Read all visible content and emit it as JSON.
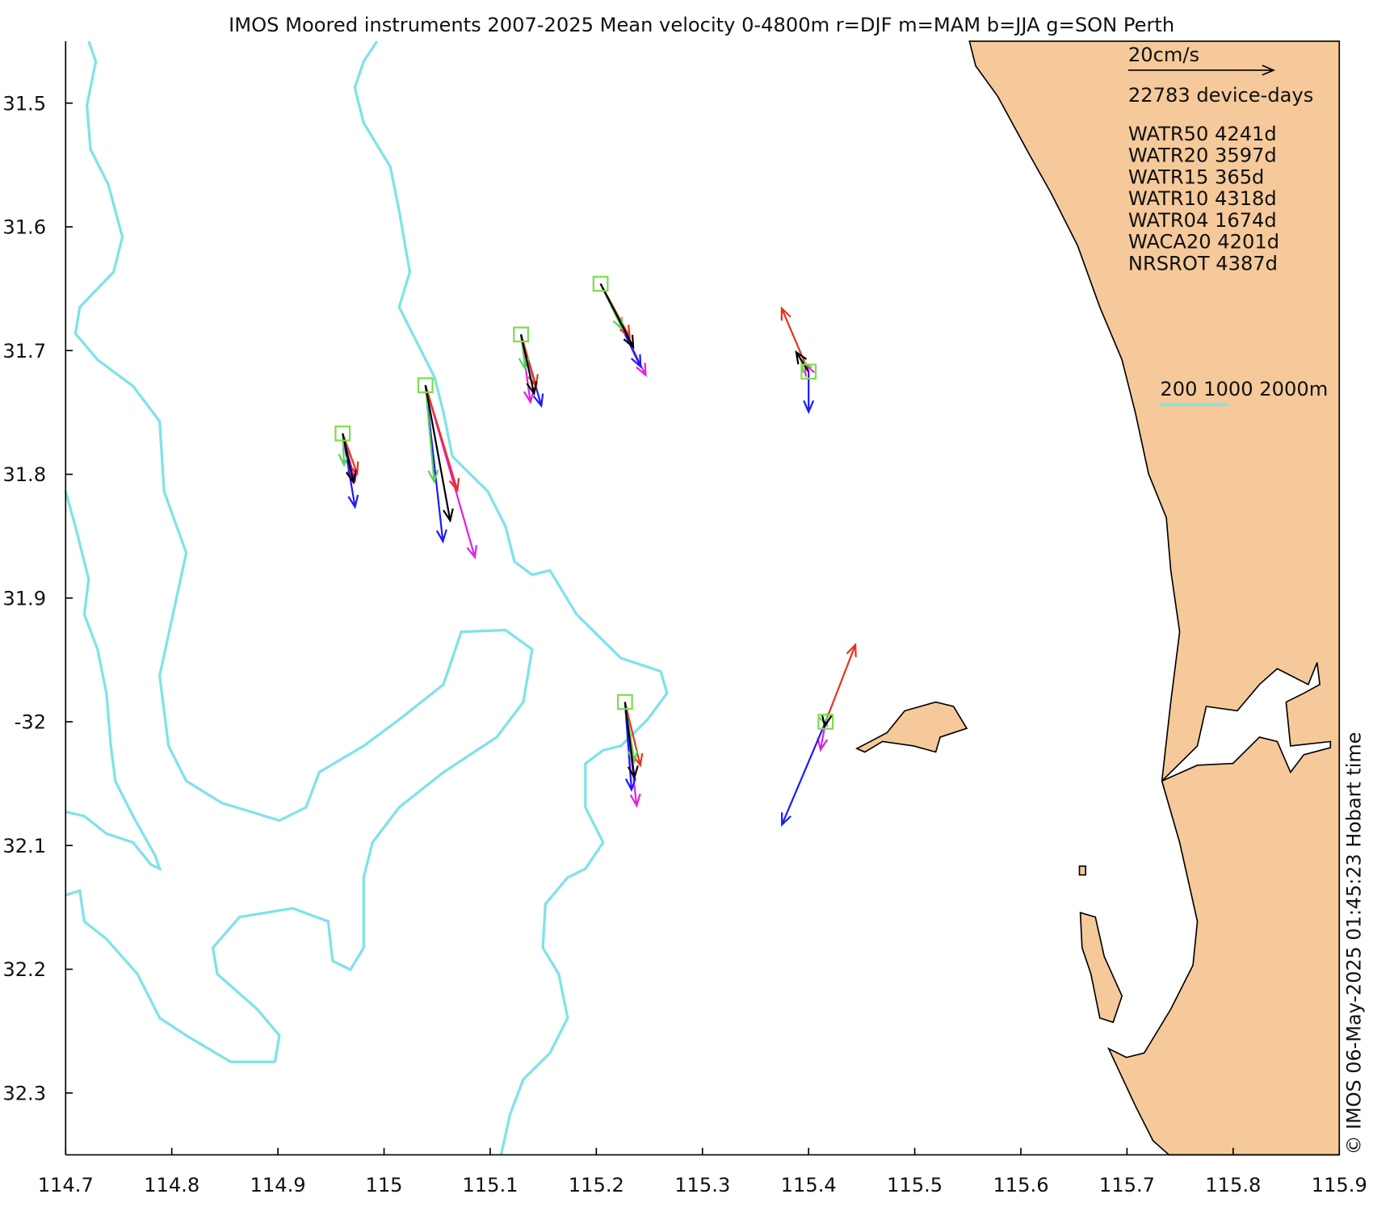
{
  "title": "IMOS Moored instruments 2007-2025 Mean velocity 0-4800m r=DJF m=MAM b=JJA g=SON Perth",
  "axes": {
    "xlim": [
      114.7,
      115.9
    ],
    "xticks": [
      114.7,
      114.8,
      114.9,
      115,
      115.1,
      115.2,
      115.3,
      115.4,
      115.5,
      115.6,
      115.7,
      115.8,
      115.9
    ],
    "ylim": [
      -31.45,
      -32.35
    ],
    "yticks": [
      {
        "value": -31.5,
        "label": "31.5"
      },
      {
        "value": -31.6,
        "label": "31.6"
      },
      {
        "value": -31.7,
        "label": "31.7"
      },
      {
        "value": -31.8,
        "label": "31.8"
      },
      {
        "value": -31.9,
        "label": "31.9"
      },
      -32,
      {
        "value": -32.1,
        "label": "32.1"
      },
      {
        "value": -32.2,
        "label": "32.2"
      },
      {
        "value": -32.3,
        "label": "32.3"
      }
    ]
  },
  "legend": {
    "scale": {
      "value": 20,
      "label": "20cm/s"
    },
    "device_days": "22783 device-days",
    "stations": [
      "WATR50 4241d",
      "WATR20 3597d",
      "WATR15 365d",
      "WATR10 4318d",
      "WATR04 1674d",
      "WACA20 4201d",
      "NRSROT 4387d"
    ],
    "isobaths": "200 1000 2000m"
  },
  "marker_color": "#7ddc4a",
  "moorings": [
    {
      "lon": 114.961,
      "lat": -31.767,
      "arrows": [
        {
          "color": "#e020e0",
          "u": 1.7,
          "v": -6.6
        },
        {
          "color": "#1a1aff",
          "u": 1.7,
          "v": -10.2
        },
        {
          "color": "#e8321e",
          "u": 2.0,
          "v": -5.6
        },
        {
          "color": "#5ad05a",
          "u": 0.2,
          "v": -4.4
        },
        {
          "color": "#000000",
          "u": 1.5,
          "v": -6.8
        }
      ]
    },
    {
      "lon": 115.039,
      "lat": -31.728,
      "arrows": [
        {
          "color": "#e020e0",
          "u": 6.8,
          "v": -23.9
        },
        {
          "color": "#1a1aff",
          "u": 2.4,
          "v": -21.7
        },
        {
          "color": "#e8321e",
          "u": 4.4,
          "v": -14.6
        },
        {
          "color": "#5ad05a",
          "u": 1.2,
          "v": -13.4
        },
        {
          "color": "#000000",
          "u": 3.4,
          "v": -18.8
        }
      ]
    },
    {
      "lon": 115.129,
      "lat": -31.687,
      "arrows": [
        {
          "color": "#e020e0",
          "u": 1.3,
          "v": -9.4
        },
        {
          "color": "#1a1aff",
          "u": 2.8,
          "v": -9.9
        },
        {
          "color": "#e8321e",
          "u": 2.1,
          "v": -7.2
        },
        {
          "color": "#5ad05a",
          "u": 0.6,
          "v": -4.8
        },
        {
          "color": "#000000",
          "u": 1.8,
          "v": -8.2
        }
      ]
    },
    {
      "lon": 115.204,
      "lat": -31.646,
      "arrows": [
        {
          "color": "#e020e0",
          "u": 6.2,
          "v": -12.7
        },
        {
          "color": "#1a1aff",
          "u": 5.5,
          "v": -11.5
        },
        {
          "color": "#e8321e",
          "u": 4.0,
          "v": -7.4
        },
        {
          "color": "#5ad05a",
          "u": 3.0,
          "v": -6.3
        },
        {
          "color": "#000000",
          "u": 4.5,
          "v": -8.8
        }
      ]
    },
    {
      "lon": 115.4,
      "lat": -31.717,
      "arrows": [
        {
          "color": "#e020e0",
          "u": -0.5,
          "v": 1.0
        },
        {
          "color": "#1a1aff",
          "u": 0,
          "v": -5.6
        },
        {
          "color": "#e8321e",
          "u": -3.7,
          "v": 8.8
        },
        {
          "color": "#5ad05a",
          "u": -1.0,
          "v": 1.5
        },
        {
          "color": "#000000",
          "u": -1.7,
          "v": 2.7
        }
      ]
    },
    {
      "lon": 115.227,
      "lat": -31.984,
      "arrows": [
        {
          "color": "#e020e0",
          "u": 1.6,
          "v": -14.4
        },
        {
          "color": "#1a1aff",
          "u": 0.9,
          "v": -12.2
        },
        {
          "color": "#e8321e",
          "u": 2.1,
          "v": -8.8
        },
        {
          "color": "#5ad05a",
          "u": 1.3,
          "v": -8.3
        },
        {
          "color": "#000000",
          "u": 1.3,
          "v": -10.5
        }
      ]
    },
    {
      "lon": 115.416,
      "lat": -32.0,
      "arrows": [
        {
          "color": "#e020e0",
          "u": -0.7,
          "v": -3.9
        },
        {
          "color": "#1a1aff",
          "u": -6.0,
          "v": -14.3
        },
        {
          "color": "#e8321e",
          "u": 4.1,
          "v": 10.7
        },
        {
          "color": "#5ad05a",
          "u": 0.2,
          "v": -0.5
        },
        {
          "color": "#000000",
          "u": -0.1,
          "v": -0.6
        }
      ]
    }
  ],
  "footer": "© IMOS 06-May-2025 01:45:23 Hobart time"
}
